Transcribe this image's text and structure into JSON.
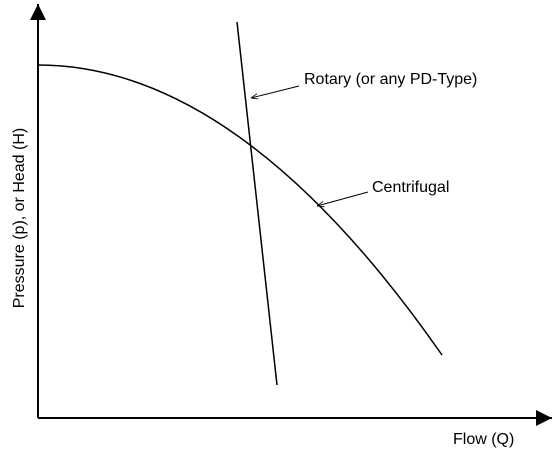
{
  "diagram": {
    "y_axis_label": "Pressure (p), or Head (H)",
    "x_axis_label": "Flow (Q)",
    "curves": [
      {
        "label": "Rotary (or any PD-Type)"
      },
      {
        "label": "Centrifugal"
      }
    ]
  }
}
